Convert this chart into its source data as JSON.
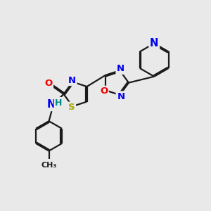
{
  "bg_color": "#e9e9e9",
  "bond_color": "#1a1a1a",
  "bond_width": 1.6,
  "dbo": 0.055,
  "atom_colors": {
    "N": "#0000ee",
    "O": "#ee0000",
    "S": "#aaaa00",
    "H": "#008888"
  },
  "fs": 10.5,
  "fig_size": [
    3.0,
    3.0
  ],
  "dpi": 100
}
